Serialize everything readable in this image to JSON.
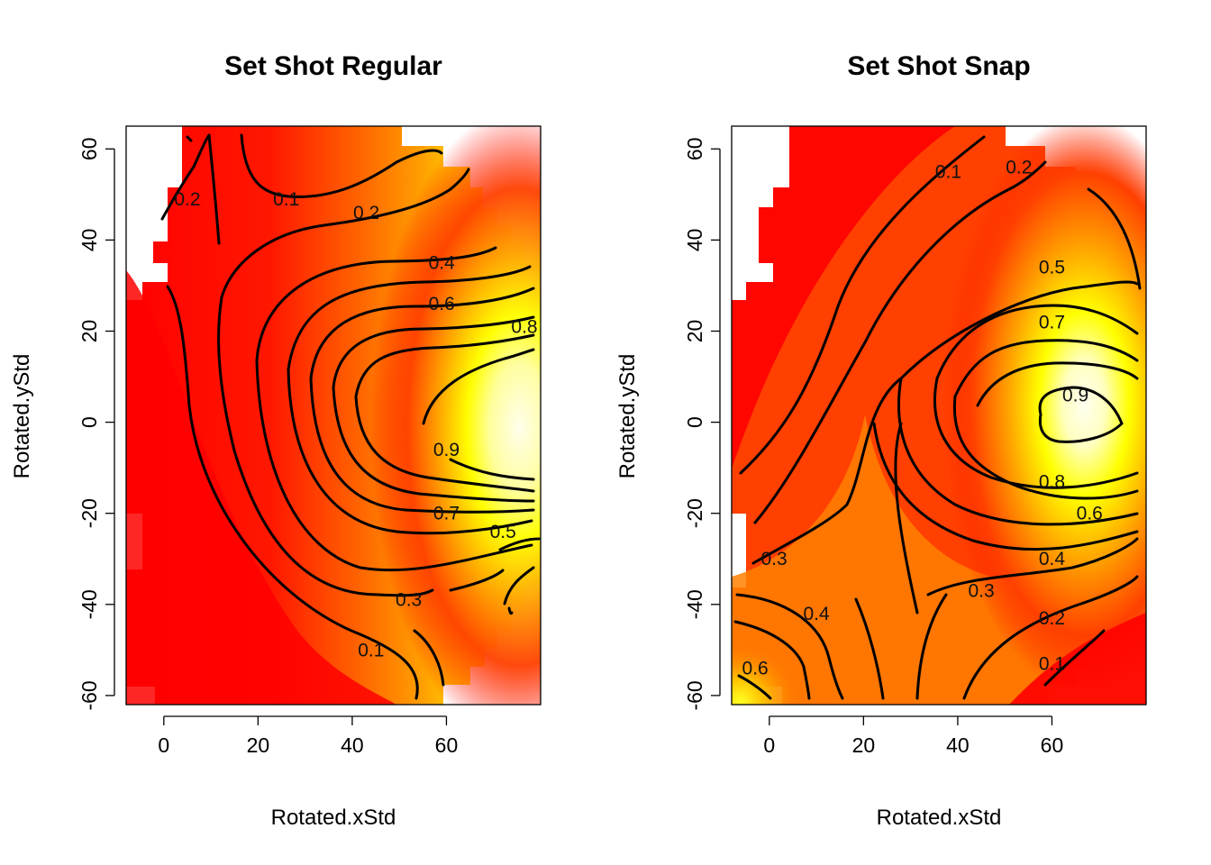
{
  "chart_data": [
    {
      "type": "heatmap",
      "title": "Set Shot Regular",
      "xlabel": "Rotated.xStd",
      "ylabel": "Rotated.yStd",
      "xlim": [
        -8,
        80
      ],
      "ylim": [
        -62,
        65
      ],
      "xticks": [
        0,
        20,
        40,
        60
      ],
      "yticks": [
        -60,
        -40,
        -20,
        0,
        20,
        40,
        60
      ],
      "colormap": [
        "#ff0000",
        "#ff4500",
        "#ff8c00",
        "#ffd000",
        "#ffff00",
        "#ffffe0"
      ],
      "contour_levels": [
        0.1,
        0.2,
        0.3,
        0.4,
        0.5,
        0.6,
        0.7,
        0.8,
        0.9
      ],
      "contour_labels": [
        {
          "text": "0.1",
          "x": 26,
          "y": 49
        },
        {
          "text": "0.2",
          "x": 5,
          "y": 49
        },
        {
          "text": "0.2",
          "x": 43,
          "y": 46
        },
        {
          "text": "0.4",
          "x": 59,
          "y": 35
        },
        {
          "text": "0.6",
          "x": 59,
          "y": 26
        },
        {
          "text": "0.8",
          "x": 78,
          "y": 21
        },
        {
          "text": "0.9",
          "x": 60,
          "y": -6
        },
        {
          "text": "0.7",
          "x": 60,
          "y": -20
        },
        {
          "text": "0.5",
          "x": 72,
          "y": -24
        },
        {
          "text": "0.3",
          "x": 52,
          "y": -39
        },
        {
          "text": "0.1",
          "x": 44,
          "y": -50
        }
      ]
    },
    {
      "type": "heatmap",
      "title": "Set Shot Snap",
      "xlabel": "Rotated.xStd",
      "ylabel": "Rotated.yStd",
      "xlim": [
        -8,
        80
      ],
      "ylim": [
        -62,
        65
      ],
      "xticks": [
        0,
        20,
        40,
        60
      ],
      "yticks": [
        -60,
        -40,
        -20,
        0,
        20,
        40,
        60
      ],
      "colormap": [
        "#ff0000",
        "#ff4500",
        "#ff8c00",
        "#ffd000",
        "#ffff00",
        "#ffffe0"
      ],
      "contour_levels": [
        0.1,
        0.2,
        0.3,
        0.4,
        0.5,
        0.6,
        0.7,
        0.8,
        0.9
      ],
      "contour_labels": [
        {
          "text": "0.1",
          "x": 38,
          "y": 55
        },
        {
          "text": "0.2",
          "x": 53,
          "y": 56
        },
        {
          "text": "0.5",
          "x": 60,
          "y": 34
        },
        {
          "text": "0.7",
          "x": 60,
          "y": 22
        },
        {
          "text": "0.9",
          "x": 65,
          "y": 6
        },
        {
          "text": "0.8",
          "x": 60,
          "y": -13
        },
        {
          "text": "0.6",
          "x": 68,
          "y": -20
        },
        {
          "text": "0.4",
          "x": 60,
          "y": -30
        },
        {
          "text": "0.3",
          "x": 1,
          "y": -30
        },
        {
          "text": "0.3",
          "x": 45,
          "y": -37
        },
        {
          "text": "0.4",
          "x": 10,
          "y": -42
        },
        {
          "text": "0.2",
          "x": 60,
          "y": -43
        },
        {
          "text": "0.6",
          "x": -3,
          "y": -54
        },
        {
          "text": "0.1",
          "x": 60,
          "y": -53
        }
      ]
    }
  ]
}
